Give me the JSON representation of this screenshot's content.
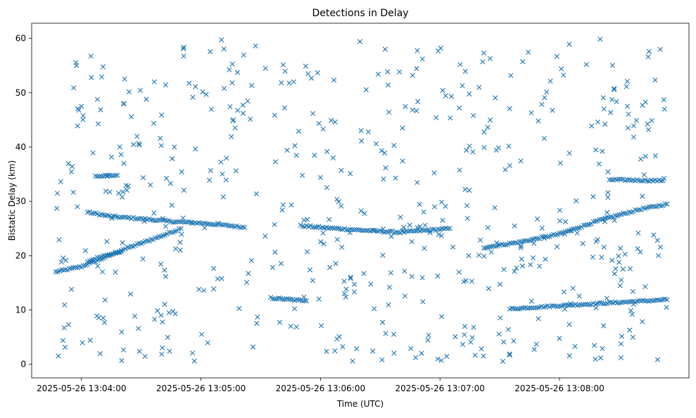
{
  "chart_data": {
    "type": "scatter",
    "title": "Detections in Delay",
    "xlabel": "Time (UTC)",
    "ylabel": "Bistatic Delay (km)",
    "marker": "x",
    "color": "#1f77b4",
    "grid": false,
    "legend": "none",
    "xlim": [
      "2025-05-26 13:03:35",
      "2025-05-26 13:09:05"
    ],
    "ylim": [
      -2.5,
      62.8
    ],
    "xticks": [
      "2025-05-26 13:04:00",
      "2025-05-26 13:05:00",
      "2025-05-26 13:06:00",
      "2025-05-26 13:07:00",
      "2025-05-26 13:08:00"
    ],
    "yticks": [
      0,
      10,
      20,
      30,
      40,
      50,
      60
    ],
    "time_range": [
      "2025-05-26 13:03:47",
      "2025-05-26 13:08:54"
    ],
    "tracks": [
      {
        "points": [
          [
            "2025-05-26 13:03:47",
            17.0
          ],
          [
            "2025-05-26 13:04:00",
            18.0
          ],
          [
            "2025-05-26 13:04:10",
            19.4
          ],
          [
            "2025-05-26 13:04:20",
            21.0
          ],
          [
            "2025-05-26 13:04:30",
            22.3
          ],
          [
            "2025-05-26 13:04:40",
            23.6
          ],
          [
            "2025-05-26 13:04:50",
            25.0
          ]
        ]
      },
      {
        "points": [
          [
            "2025-05-26 13:04:03",
            19.0
          ],
          [
            "2025-05-26 13:04:10",
            19.8
          ],
          [
            "2025-05-26 13:04:20",
            20.7
          ]
        ]
      },
      {
        "points": [
          [
            "2025-05-26 13:04:03",
            28.0
          ],
          [
            "2025-05-26 13:04:15",
            27.2
          ],
          [
            "2025-05-26 13:04:30",
            26.8
          ],
          [
            "2025-05-26 13:04:45",
            26.3
          ],
          [
            "2025-05-26 13:05:00",
            26.0
          ],
          [
            "2025-05-26 13:05:15",
            25.5
          ],
          [
            "2025-05-26 13:05:22",
            25.2
          ]
        ]
      },
      {
        "points": [
          [
            "2025-05-26 13:04:07",
            34.7
          ],
          [
            "2025-05-26 13:04:18",
            34.8
          ]
        ]
      },
      {
        "points": [
          [
            "2025-05-26 13:05:50",
            25.5
          ],
          [
            "2025-05-26 13:06:00",
            25.2
          ],
          [
            "2025-05-26 13:06:20",
            24.7
          ],
          [
            "2025-05-26 13:06:40",
            24.3
          ],
          [
            "2025-05-26 13:07:05",
            25.0
          ]
        ]
      },
      {
        "points": [
          [
            "2025-05-26 13:05:35",
            12.2
          ],
          [
            "2025-05-26 13:05:52",
            11.7
          ]
        ]
      },
      {
        "points": [
          [
            "2025-05-26 13:07:22",
            21.5
          ],
          [
            "2025-05-26 13:07:40",
            22.5
          ],
          [
            "2025-05-26 13:08:00",
            24.0
          ],
          [
            "2025-05-26 13:08:20",
            26.5
          ],
          [
            "2025-05-26 13:08:40",
            28.5
          ],
          [
            "2025-05-26 13:08:54",
            29.5
          ]
        ]
      },
      {
        "points": [
          [
            "2025-05-26 13:07:35",
            10.2
          ],
          [
            "2025-05-26 13:08:00",
            10.8
          ],
          [
            "2025-05-26 13:08:30",
            11.4
          ],
          [
            "2025-05-26 13:08:54",
            11.9
          ]
        ]
      },
      {
        "points": [
          [
            "2025-05-26 13:08:25",
            34.0
          ],
          [
            "2025-05-26 13:08:52",
            33.8
          ]
        ]
      }
    ],
    "scatter_noise": {
      "count": 560,
      "y_range": [
        0.5,
        60.0
      ]
    }
  }
}
